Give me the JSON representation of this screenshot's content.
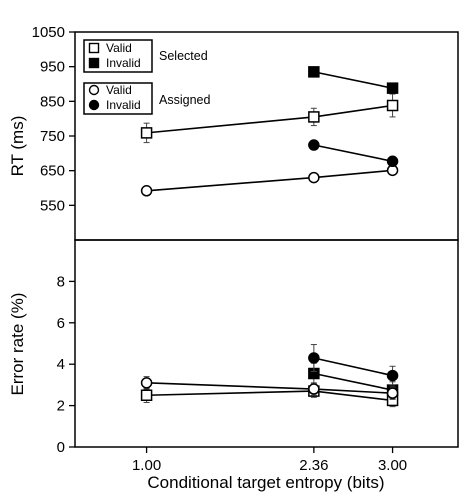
{
  "chart_data": [
    {
      "type": "line",
      "panel": "top",
      "xlabel": "",
      "ylabel": "RT (ms)",
      "x": [
        1.0,
        2.36,
        3.0
      ],
      "x_tick_labels": [],
      "ylim": [
        450,
        1050
      ],
      "yticks": [
        "550",
        "650",
        "750",
        "850",
        "950",
        "1050"
      ],
      "grid": false,
      "legend": {
        "placement": "top-left",
        "groups": [
          {
            "title": "Selected",
            "entries": [
              {
                "label": "Valid",
                "marker": "open-square"
              },
              {
                "label": "Invalid",
                "marker": "filled-square"
              }
            ]
          },
          {
            "title": "Assigned",
            "entries": [
              {
                "label": "Valid",
                "marker": "open-circle"
              },
              {
                "label": "Invalid",
                "marker": "filled-circle"
              }
            ]
          }
        ]
      },
      "series": [
        {
          "group": "Selected",
          "condition": "Valid",
          "marker": "open-square",
          "x": [
            1.0,
            2.36,
            3.0
          ],
          "y": [
            759,
            805,
            838
          ],
          "err": [
            28,
            25,
            33
          ]
        },
        {
          "group": "Selected",
          "condition": "Invalid",
          "marker": "filled-square",
          "x": [
            2.36,
            3.0
          ],
          "y": [
            935,
            888
          ],
          "err": [
            12,
            10
          ]
        },
        {
          "group": "Assigned",
          "condition": "Valid",
          "marker": "open-circle",
          "x": [
            1.0,
            2.36,
            3.0
          ],
          "y": [
            592,
            630,
            651
          ],
          "err": [
            0,
            0,
            0
          ]
        },
        {
          "group": "Assigned",
          "condition": "Invalid",
          "marker": "filled-circle",
          "x": [
            2.36,
            3.0
          ],
          "y": [
            724,
            677
          ],
          "err": [
            0,
            0
          ]
        }
      ]
    },
    {
      "type": "line",
      "panel": "bottom",
      "xlabel": "Conditional target entropy (bits)",
      "ylabel": "Error rate (%)",
      "x": [
        1.0,
        2.36,
        3.0
      ],
      "x_tick_labels": [
        "1.00",
        "2.36",
        "3.00"
      ],
      "ylim": [
        0,
        10
      ],
      "yticks": [
        "0",
        "2",
        "4",
        "6",
        "8"
      ],
      "grid": false,
      "series": [
        {
          "group": "Selected",
          "condition": "Valid",
          "marker": "open-square",
          "x": [
            1.0,
            2.36,
            3.0
          ],
          "y": [
            2.5,
            2.7,
            2.25
          ],
          "err": [
            0.35,
            0.3,
            0.3
          ]
        },
        {
          "group": "Selected",
          "condition": "Invalid",
          "marker": "filled-square",
          "x": [
            2.36,
            3.0
          ],
          "y": [
            3.55,
            2.75
          ],
          "err": [
            0.5,
            0.4
          ]
        },
        {
          "group": "Assigned",
          "condition": "Valid",
          "marker": "open-circle",
          "x": [
            1.0,
            2.36,
            3.0
          ],
          "y": [
            3.1,
            2.8,
            2.6
          ],
          "err": [
            0.3,
            0.3,
            0.3
          ]
        },
        {
          "group": "Assigned",
          "condition": "Invalid",
          "marker": "filled-circle",
          "x": [
            2.36,
            3.0
          ],
          "y": [
            4.3,
            3.45
          ],
          "err": [
            0.65,
            0.45
          ]
        }
      ]
    }
  ]
}
